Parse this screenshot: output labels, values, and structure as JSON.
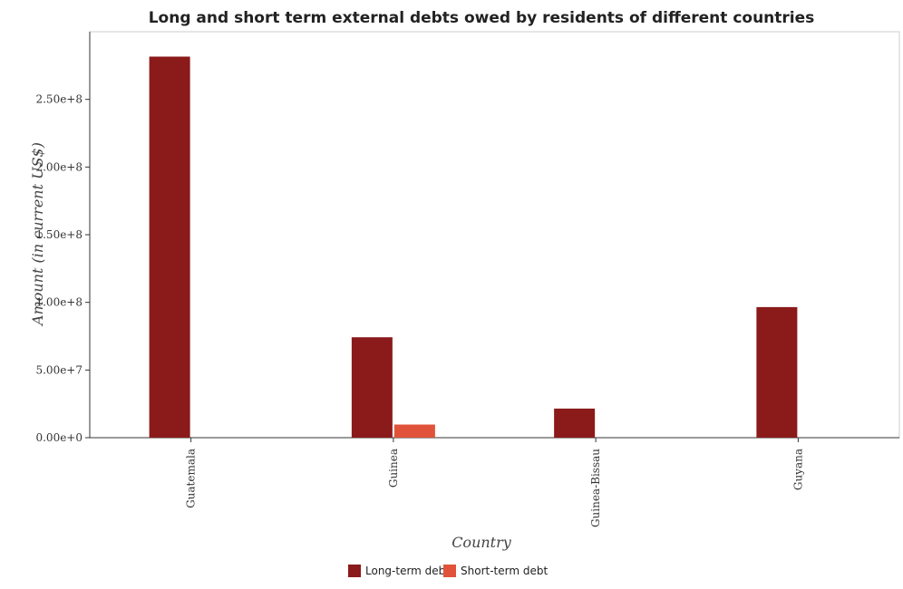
{
  "chart_data": {
    "type": "bar",
    "title": "Long and short term external debts owed by residents of different countries",
    "xlabel": "Country",
    "ylabel": "Amount (in current US$)",
    "categories": [
      "Guatemala",
      "Guinea",
      "Guinea-Bissau",
      "Guyana"
    ],
    "series": [
      {
        "name": "Long-term debt",
        "color": "#8b1a1a",
        "values": [
          281600000,
          74200000,
          21500000,
          96500000
        ]
      },
      {
        "name": "Short-term debt",
        "color": "#e0533a",
        "values": [
          0,
          9700000,
          0,
          0
        ]
      }
    ],
    "ylim": [
      0,
      300000000
    ],
    "yticks": [
      0,
      50000000,
      100000000,
      150000000,
      200000000,
      250000000
    ],
    "ytick_labels": [
      "0.00e+0",
      "5.00e+7",
      "1.00e+8",
      "1.50e+8",
      "2.00e+8",
      "2.50e+8"
    ],
    "grid": false,
    "legend_position": "bottom"
  }
}
